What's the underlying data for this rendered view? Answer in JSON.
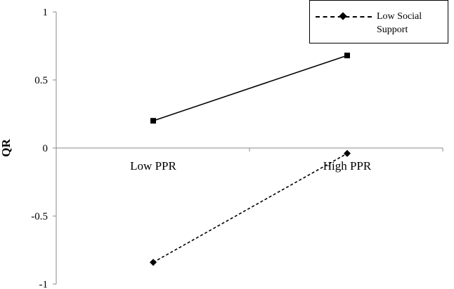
{
  "chart_data": {
    "type": "line",
    "categories": [
      "Low PPR",
      "High PPR"
    ],
    "ylabel": "QR",
    "xlabel": "",
    "ylim": [
      -1,
      1
    ],
    "yticks": [
      -1,
      -0.5,
      0,
      0.5,
      1
    ],
    "ytick_labels": [
      "-1",
      "-0.5",
      "0",
      "0.5",
      "1"
    ],
    "legend_position": "top-right",
    "series": [
      {
        "values": [
          0.2,
          0.68
        ],
        "line_style": "solid",
        "marker": "square",
        "color": "#000000"
      },
      {
        "name": "Low Social Support",
        "values": [
          -0.84,
          -0.04
        ],
        "line_style": "dashed",
        "marker": "diamond",
        "color": "#000000"
      }
    ]
  },
  "legend": {
    "entries": [
      "Low Social Support"
    ]
  }
}
